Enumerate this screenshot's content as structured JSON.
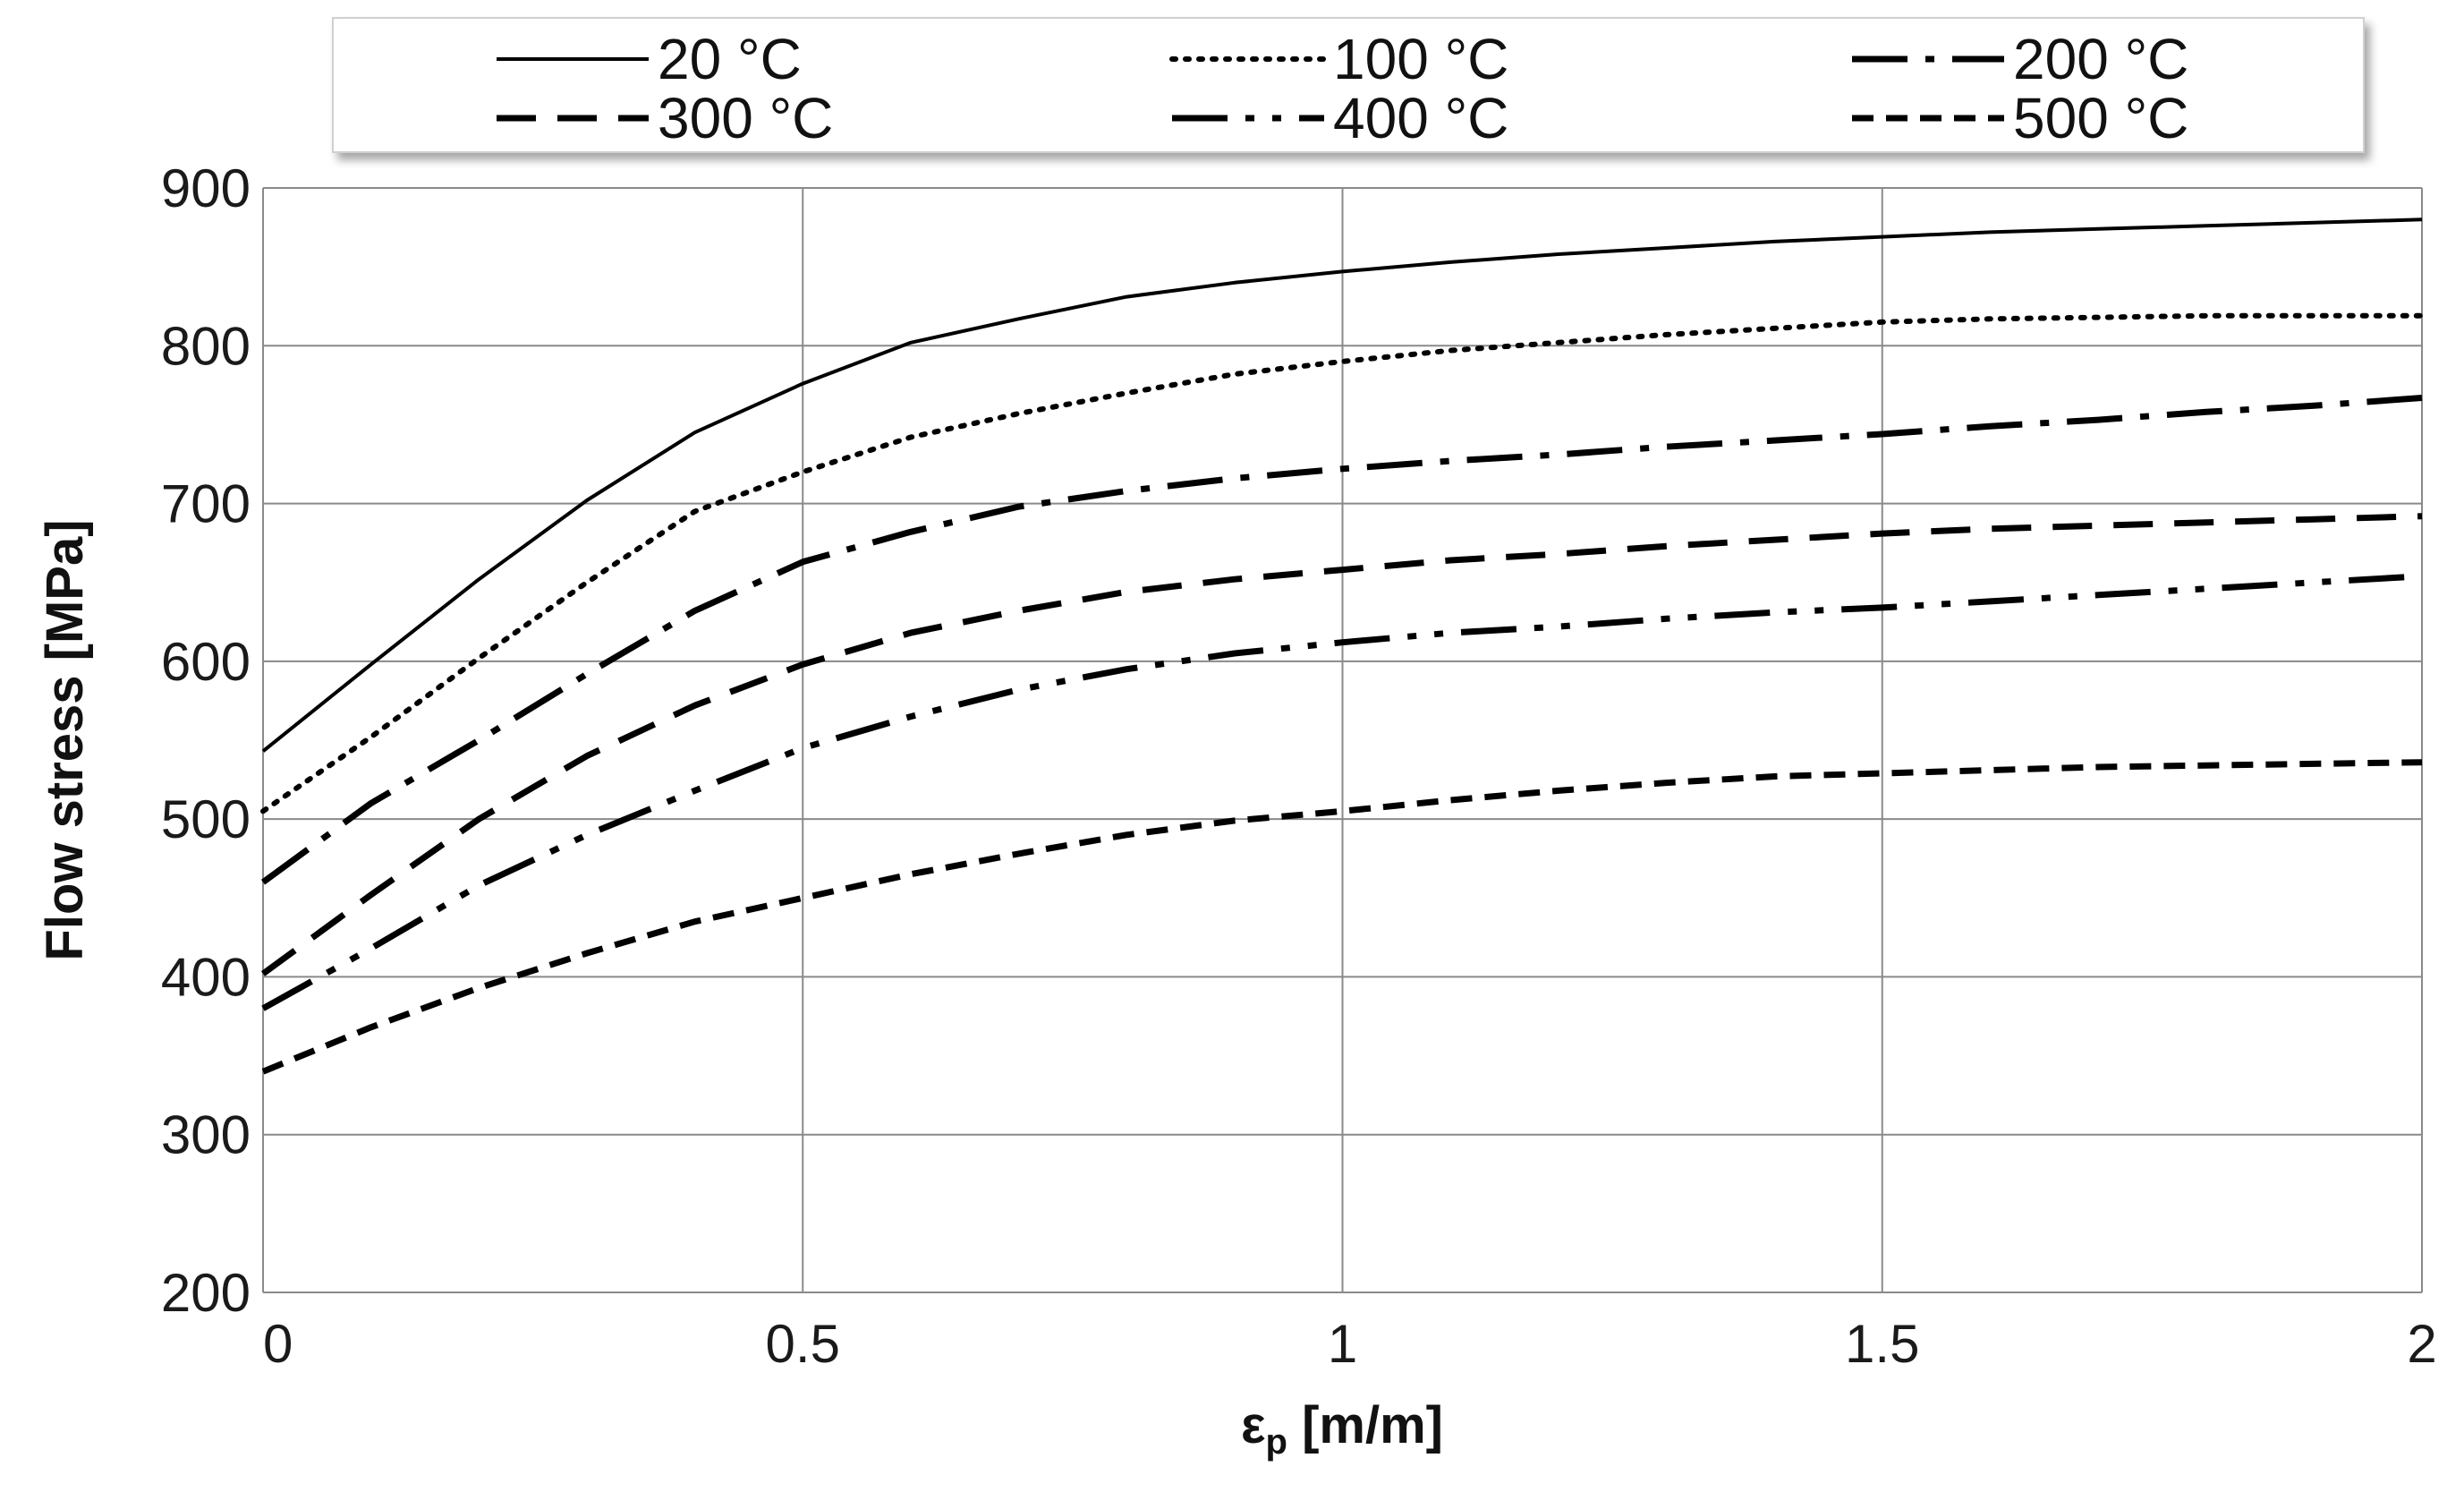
{
  "chart_data": {
    "type": "line",
    "title": "",
    "xlabel": "ε",
    "xlabel_subscript": "p",
    "xlabel_unit": " [m/m]",
    "ylabel": "Flow stress [MPa]",
    "xlim": [
      0,
      2
    ],
    "ylim": [
      200,
      900
    ],
    "xticks": [
      0,
      0.5,
      1,
      1.5,
      2
    ],
    "xtick_labels": [
      "0",
      "0.5",
      "1",
      "1.5",
      "2"
    ],
    "yticks": [
      200,
      300,
      400,
      500,
      600,
      700,
      800,
      900
    ],
    "ytick_labels": [
      "200",
      "300",
      "400",
      "500",
      "600",
      "700",
      "800",
      "900"
    ],
    "grid": true,
    "legend_position": "top",
    "series": [
      {
        "name": "20 °C",
        "style": "solid",
        "x": [
          0,
          0.1,
          0.2,
          0.3,
          0.4,
          0.5,
          0.6,
          0.7,
          0.8,
          0.9,
          1.0,
          1.1,
          1.2,
          1.3,
          1.4,
          1.5,
          1.6,
          1.7,
          1.8,
          1.9,
          2.0
        ],
        "values": [
          543,
          598,
          652,
          702,
          745,
          776,
          802,
          817,
          831,
          840,
          847,
          853,
          858,
          862,
          866,
          869,
          872,
          874,
          876,
          878,
          880
        ]
      },
      {
        "name": "100 °C",
        "style": "dotted",
        "x": [
          0,
          0.1,
          0.2,
          0.3,
          0.4,
          0.5,
          0.6,
          0.7,
          0.8,
          0.9,
          1.0,
          1.1,
          1.2,
          1.3,
          1.4,
          1.5,
          1.6,
          1.7,
          1.8,
          1.9,
          2.0
        ],
        "values": [
          505,
          552,
          602,
          650,
          695,
          720,
          742,
          757,
          770,
          782,
          790,
          797,
          802,
          807,
          811,
          815,
          817,
          818,
          819,
          819,
          819
        ]
      },
      {
        "name": "200 °C",
        "style": "dashdot",
        "x": [
          0,
          0.1,
          0.2,
          0.3,
          0.4,
          0.5,
          0.6,
          0.7,
          0.8,
          0.9,
          1.0,
          1.1,
          1.2,
          1.3,
          1.4,
          1.5,
          1.6,
          1.7,
          1.8,
          1.9,
          2.0
        ],
        "values": [
          460,
          510,
          550,
          592,
          632,
          663,
          682,
          698,
          708,
          716,
          722,
          727,
          731,
          736,
          740,
          744,
          749,
          753,
          758,
          762,
          767
        ]
      },
      {
        "name": "300 °C",
        "style": "dashed",
        "x": [
          0,
          0.1,
          0.2,
          0.3,
          0.4,
          0.5,
          0.6,
          0.7,
          0.8,
          0.9,
          1.0,
          1.1,
          1.2,
          1.3,
          1.4,
          1.5,
          1.6,
          1.7,
          1.8,
          1.9,
          2.0
        ],
        "values": [
          402,
          452,
          500,
          540,
          572,
          598,
          618,
          632,
          644,
          652,
          658,
          664,
          668,
          673,
          677,
          681,
          684,
          686,
          688,
          690,
          692
        ]
      },
      {
        "name": "400 °C",
        "style": "dashdotdot",
        "x": [
          0,
          0.1,
          0.2,
          0.3,
          0.4,
          0.5,
          0.6,
          0.7,
          0.8,
          0.9,
          1.0,
          1.1,
          1.2,
          1.3,
          1.4,
          1.5,
          1.6,
          1.7,
          1.8,
          1.9,
          2.0
        ],
        "values": [
          380,
          418,
          458,
          490,
          518,
          545,
          565,
          582,
          595,
          605,
          612,
          618,
          622,
          627,
          631,
          634,
          638,
          642,
          646,
          650,
          654
        ]
      },
      {
        "name": "500 °C",
        "style": "shortdash",
        "x": [
          0,
          0.1,
          0.2,
          0.3,
          0.4,
          0.5,
          0.6,
          0.7,
          0.8,
          0.9,
          1.0,
          1.1,
          1.2,
          1.3,
          1.4,
          1.5,
          1.6,
          1.7,
          1.8,
          1.9,
          2.0
        ],
        "values": [
          340,
          368,
          393,
          415,
          435,
          450,
          465,
          478,
          490,
          499,
          505,
          512,
          518,
          523,
          527,
          529,
          531,
          533,
          534,
          535,
          536
        ]
      }
    ]
  }
}
